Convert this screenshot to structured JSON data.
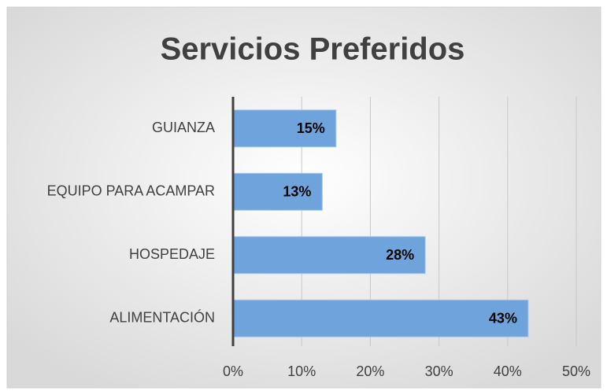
{
  "chart_data": {
    "type": "bar",
    "orientation": "horizontal",
    "title": "Servicios Preferidos",
    "categories": [
      "GUIANZA",
      "EQUIPO PARA ACAMPAR",
      "HOSPEDAJE",
      "ALIMENTACIÓN"
    ],
    "values": [
      15,
      13,
      28,
      43
    ],
    "value_labels": [
      "15%",
      "13%",
      "28%",
      "43%"
    ],
    "color": "#6fa3dc",
    "xlim": [
      0,
      50
    ],
    "xticks": [
      {
        "value": 0,
        "label": "0%"
      },
      {
        "value": 10,
        "label": "10%"
      },
      {
        "value": 20,
        "label": "20%"
      },
      {
        "value": 30,
        "label": "30%"
      },
      {
        "value": 40,
        "label": "40%"
      },
      {
        "value": 50,
        "label": "50%"
      }
    ],
    "grid": true
  }
}
